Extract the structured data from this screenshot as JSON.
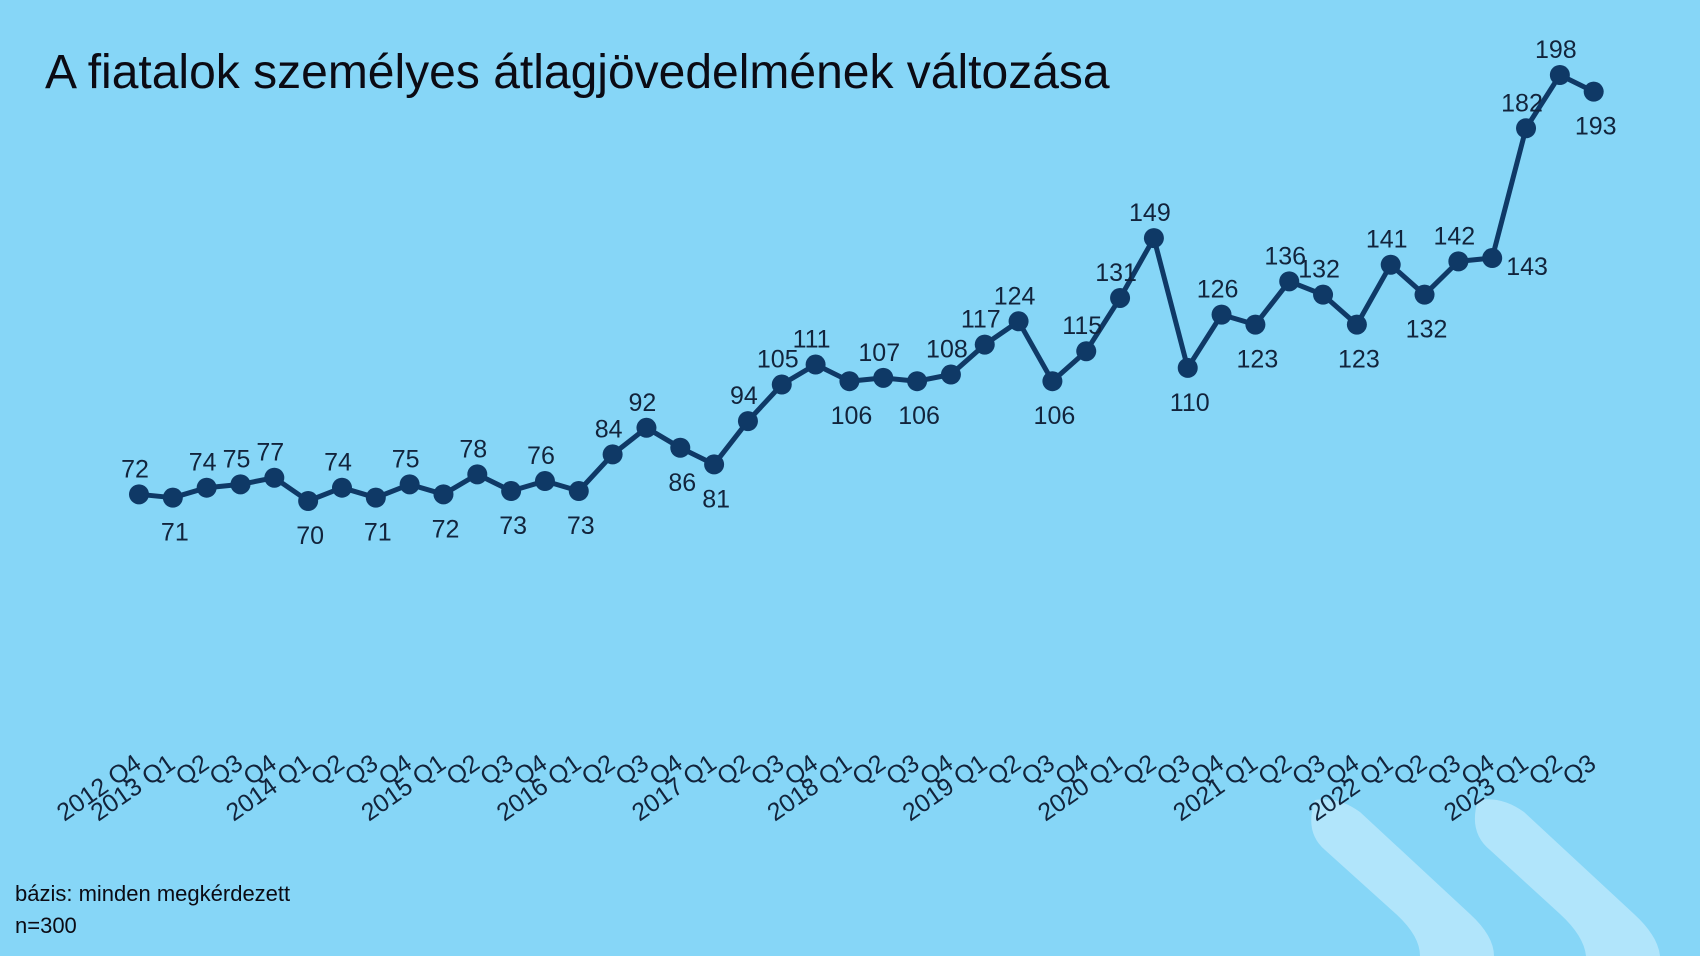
{
  "colors": {
    "background": "#86d6f7",
    "line": "#0f3966",
    "decor": "#b9e7fb"
  },
  "footnote": {
    "base": "bázis: minden megkérdezett",
    "n": "n=300"
  },
  "chart_data": {
    "type": "line",
    "title": "A fiatalok személyes átlagjövedelmének változása",
    "xlabel": "",
    "ylabel": "",
    "grid": false,
    "legend": "none",
    "ylim": [
      0,
      210
    ],
    "categories": [
      "2012 Q4",
      "2013 Q1",
      "Q2",
      "Q3",
      "Q4",
      "2014 Q1",
      "Q2",
      "Q3",
      "Q4",
      "2015 Q1",
      "Q2",
      "Q3",
      "Q4",
      "2016 Q1",
      "Q2",
      "Q3",
      "Q4",
      "2017 Q1",
      "Q2",
      "Q3",
      "Q4",
      "2018 Q1",
      "Q2",
      "Q3",
      "Q4",
      "2019 Q1",
      "Q2",
      "Q3",
      "Q4",
      "2020 Q1",
      "Q2",
      "Q3",
      "Q4",
      "2021 Q1",
      "Q2",
      "Q3",
      "Q4",
      "2022 Q1",
      "Q2",
      "Q3",
      "Q4",
      "2023 Q1",
      "Q2",
      "Q3"
    ],
    "series": [
      {
        "values": [
          72,
          71,
          74,
          75,
          77,
          70,
          74,
          71,
          75,
          72,
          78,
          73,
          76,
          73,
          84,
          92,
          86,
          81,
          94,
          105,
          111,
          106,
          107,
          106,
          108,
          117,
          124,
          106,
          115,
          131,
          149,
          110,
          126,
          123,
          136,
          132,
          123,
          141,
          132,
          142,
          143,
          182,
          198,
          193
        ],
        "label_positions": [
          "above",
          "below",
          "above",
          "above",
          "above",
          "below",
          "above",
          "below",
          "above",
          "below",
          "above",
          "below",
          "above",
          "below",
          "above",
          "above",
          "below",
          "below",
          "above",
          "above",
          "above",
          "below",
          "above",
          "below",
          "above",
          "above",
          "above",
          "below",
          "above",
          "above",
          "above",
          "below",
          "above",
          "below",
          "above",
          "above",
          "below",
          "above",
          "below",
          "above",
          "right",
          "above",
          "above",
          "below"
        ]
      }
    ]
  }
}
